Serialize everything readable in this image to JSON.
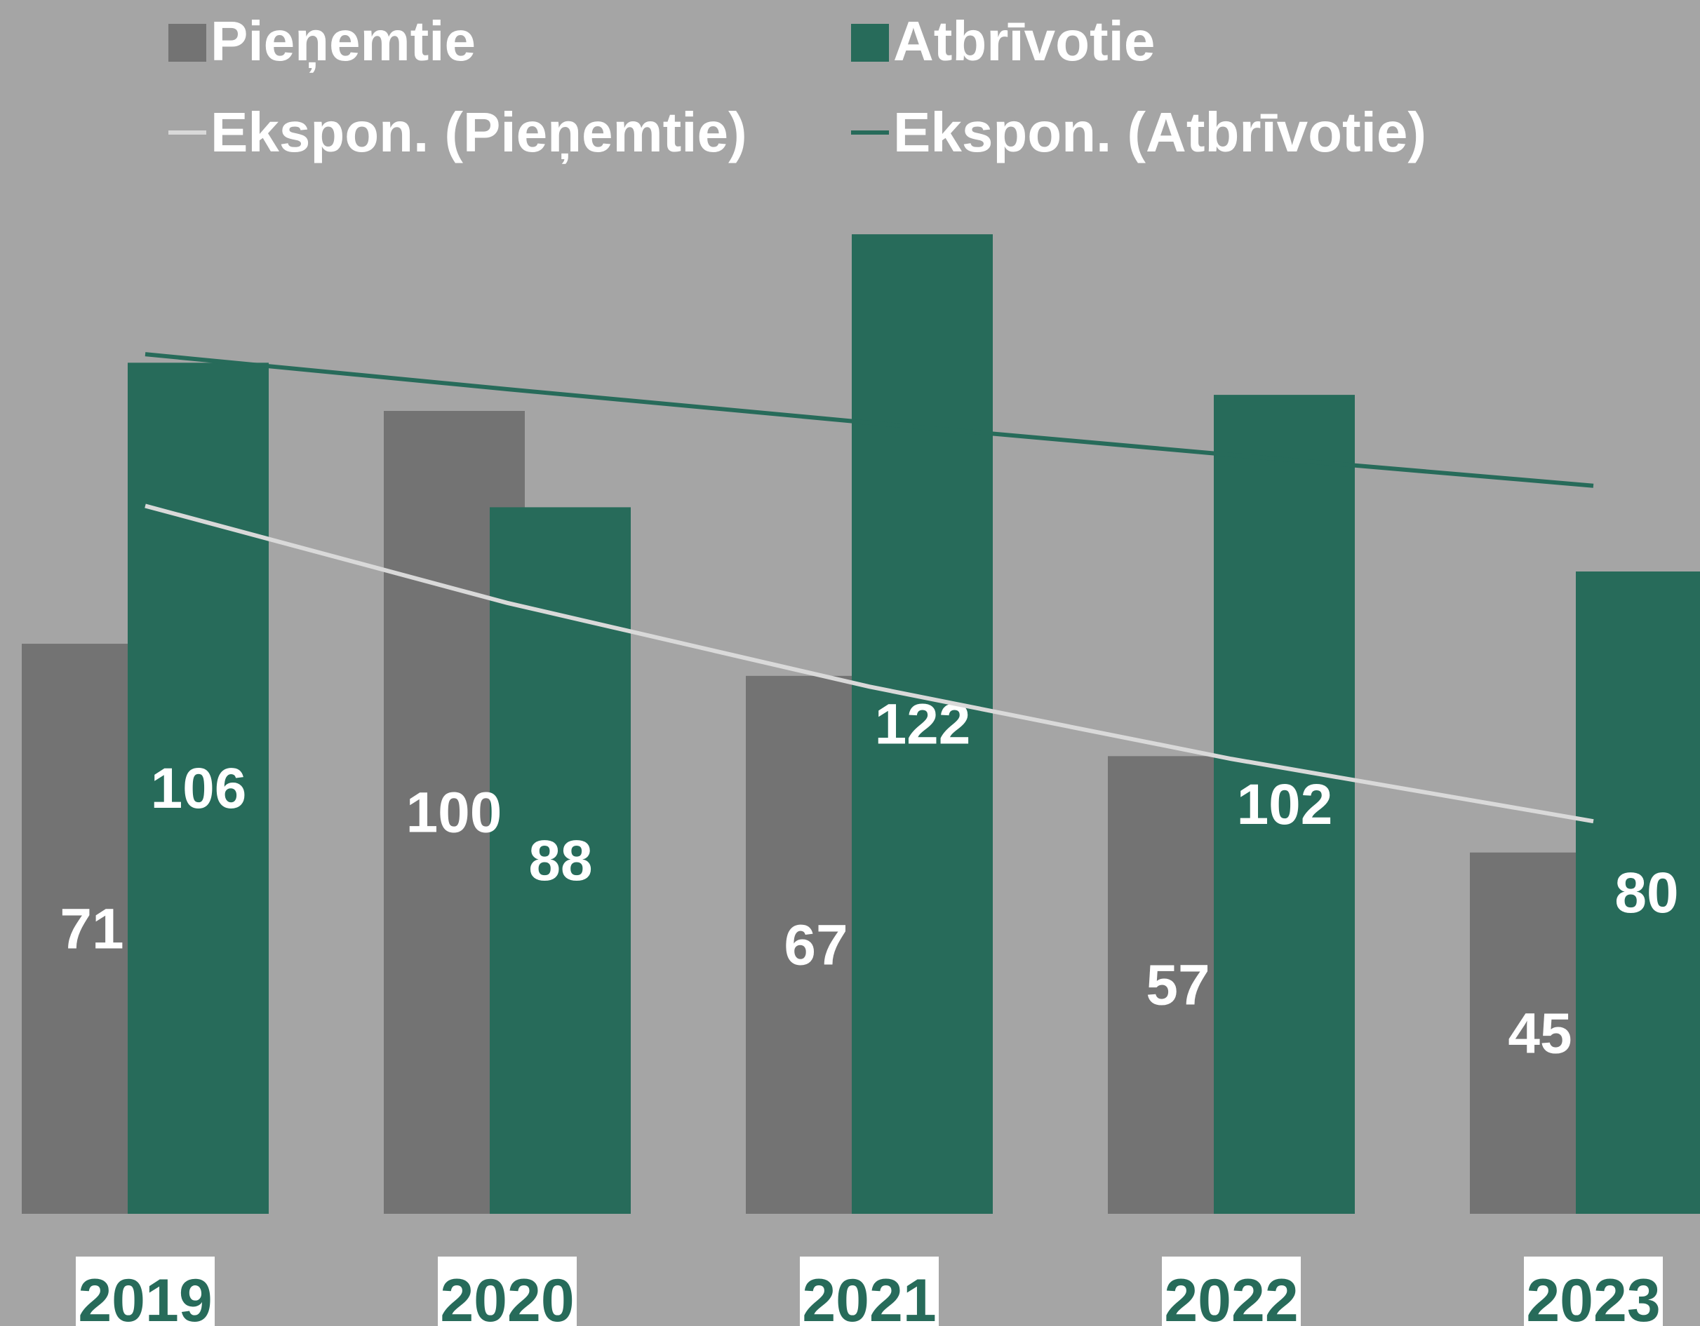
{
  "chart_data": {
    "type": "bar",
    "categories": [
      "2019",
      "2020",
      "2021",
      "2022",
      "2023"
    ],
    "series": [
      {
        "name": "Pieņemtie",
        "color": "#737373",
        "values": [
          71,
          100,
          67,
          57,
          45
        ]
      },
      {
        "name": "Atbrīvotie",
        "color": "#276b5a",
        "values": [
          106,
          88,
          122,
          102,
          80
        ]
      }
    ],
    "trendlines": [
      {
        "name": "Ekspon. (Pieņemtie)",
        "color": "#d9d9d9",
        "series": 0
      },
      {
        "name": "Ekspon. (Atbrīvotie)",
        "color": "#276b5a",
        "series": 1
      }
    ],
    "ylim": [
      0,
      140
    ],
    "background": "#a5a5a5"
  }
}
